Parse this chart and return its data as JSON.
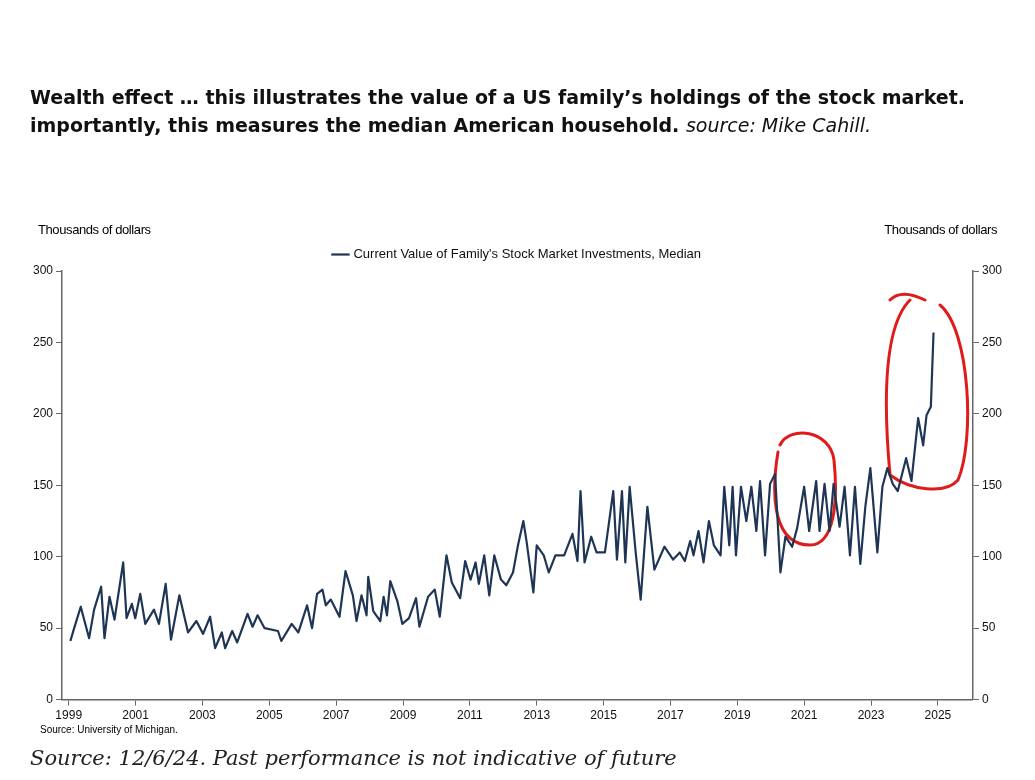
{
  "chart_data": {
    "type": "line",
    "title": "Wealth effect … this illustrates the value of a US family’s holdings of the stock market.  importantly, this measures the median American household.",
    "subtitle": "source: Mike Cahill.",
    "ylabel": "Thousands of dollars",
    "y2label": "Thousands of dollars",
    "annotations": [
      "Source: University of Michigan.",
      "Source: 12/6/24. Past performance is not indicative of future"
    ],
    "series": [
      {
        "name": "Current Value of Family's Stock Market Investments, Median",
        "color": "#1f3556",
        "x": [
          1999.05,
          1999.15,
          1999.36,
          1999.61,
          1999.76,
          1999.97,
          2000.07,
          2000.22,
          2000.37,
          2000.63,
          2000.73,
          2000.89,
          2000.99,
          2001.14,
          2001.29,
          2001.55,
          2001.7,
          2001.9,
          2002.06,
          2002.31,
          2002.57,
          2002.82,
          2003.02,
          2003.23,
          2003.38,
          2003.58,
          2003.68,
          2003.89,
          2004.04,
          2004.35,
          2004.5,
          2004.65,
          2004.86,
          2005.26,
          2005.36,
          2005.67,
          2005.87,
          2006.13,
          2006.28,
          2006.43,
          2006.59,
          2006.69,
          2006.84,
          2007.1,
          2007.28,
          2007.5,
          2007.61,
          2007.76,
          2007.91,
          2007.96,
          2008.11,
          2008.32,
          2008.42,
          2008.52,
          2008.62,
          2008.83,
          2008.98,
          2009.18,
          2009.39,
          2009.49,
          2009.75,
          2009.95,
          2010.1,
          2010.3,
          2010.46,
          2010.71,
          2010.86,
          2011.02,
          2011.17,
          2011.27,
          2011.43,
          2011.58,
          2011.73,
          2011.93,
          2012.09,
          2012.29,
          2012.44,
          2012.6,
          2012.7,
          2012.9,
          2013.0,
          2013.21,
          2013.36,
          2013.56,
          2013.82,
          2014.07,
          2014.22,
          2014.31,
          2014.43,
          2014.63,
          2014.79,
          2015.04,
          2015.29,
          2015.4,
          2015.55,
          2015.65,
          2015.78,
          2015.96,
          2016.11,
          2016.31,
          2016.52,
          2016.82,
          2017.08,
          2017.28,
          2017.43,
          2017.59,
          2017.69,
          2017.84,
          2017.99,
          2018.15,
          2018.3,
          2018.5,
          2018.61,
          2018.76,
          2018.86,
          2018.96,
          2019.11,
          2019.27,
          2019.42,
          2019.57,
          2019.68,
          2019.83,
          2019.98,
          2020.13,
          2020.29,
          2020.44,
          2020.64,
          2020.79,
          2021.0,
          2021.15,
          2021.36,
          2021.46,
          2021.61,
          2021.76,
          2021.88,
          2022.06,
          2022.21,
          2022.37,
          2022.52,
          2022.68,
          2022.83,
          2022.98,
          2023.19,
          2023.34,
          2023.49,
          2023.65,
          2023.8,
          2024.05,
          2024.21,
          2024.41,
          2024.56,
          2024.66,
          2024.79,
          2024.87
        ],
        "values": [
          41,
          49,
          65,
          43,
          63,
          79,
          43,
          72,
          56,
          96,
          57,
          67,
          57,
          74,
          53,
          63,
          53,
          81,
          42,
          73,
          47,
          55,
          46,
          58,
          36,
          47,
          36,
          48,
          40,
          60,
          51,
          59,
          50,
          48,
          41,
          53,
          47,
          66,
          50,
          74,
          77,
          66,
          70,
          58,
          90,
          73,
          55,
          73,
          59,
          86,
          62,
          55,
          72,
          59,
          83,
          69,
          53,
          57,
          71,
          51,
          72,
          77,
          58,
          101,
          82,
          71,
          97,
          84,
          96,
          81,
          101,
          73,
          101,
          84,
          80,
          89,
          108,
          125,
          110,
          75,
          108,
          101,
          89,
          101,
          101,
          116,
          97,
          146,
          96,
          114,
          103,
          103,
          146,
          98,
          146,
          96,
          149,
          103,
          70,
          135,
          91,
          107,
          98,
          103,
          97,
          111,
          101,
          118,
          96,
          125,
          108,
          101,
          149,
          108,
          149,
          101,
          149,
          125,
          149,
          118,
          153,
          101,
          151,
          158,
          89,
          114,
          107,
          120,
          149,
          118,
          153,
          118,
          151,
          118,
          151,
          121,
          149,
          101,
          149,
          95,
          135,
          162,
          103,
          149,
          162,
          151,
          146,
          169,
          153,
          197,
          178,
          199,
          205,
          257
        ]
      }
    ],
    "xlim": [
      1998.8,
      2026.05
    ],
    "xticks": [
      1999,
      2001,
      2003,
      2005,
      2007,
      2009,
      2011,
      2013,
      2015,
      2017,
      2019,
      2021,
      2023,
      2025
    ],
    "ylim": [
      0,
      300
    ],
    "yticks": [
      0,
      50,
      100,
      150,
      200,
      250,
      300
    ],
    "y2lim": [
      0,
      300
    ],
    "y2ticks": [
      0,
      50,
      100,
      150,
      200,
      250,
      300
    ],
    "legend": "top",
    "marker": "none"
  }
}
